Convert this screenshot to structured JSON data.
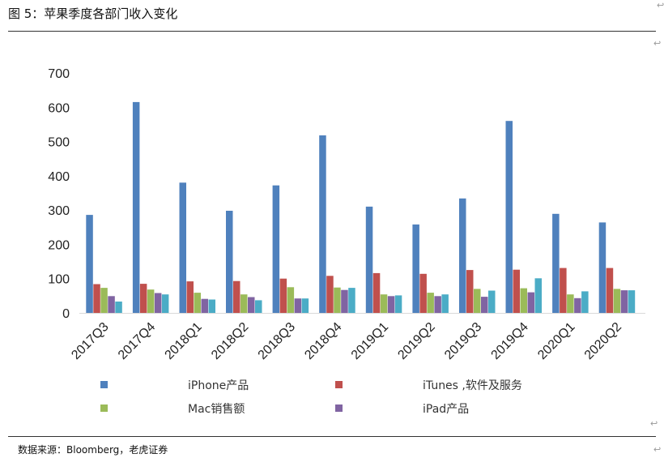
{
  "header": {
    "title": "图 5：苹果季度各部门收入变化"
  },
  "footer": {
    "source": "数据来源：Bloomberg，老虎证券"
  },
  "chart_data": {
    "type": "bar",
    "title": "",
    "xlabel": "",
    "ylabel": "",
    "ylim": [
      0,
      700
    ],
    "yticks": [
      0,
      100,
      200,
      300,
      400,
      500,
      600,
      700
    ],
    "grid": false,
    "legend_position": "bottom",
    "categories": [
      "2017Q3",
      "2017Q4",
      "2018Q1",
      "2018Q2",
      "2018Q3",
      "2018Q4",
      "2019Q1",
      "2019Q2",
      "2019Q3",
      "2019Q4",
      "2020Q1",
      "2020Q2"
    ],
    "series": [
      {
        "name": "iPhone产品",
        "color": "#4F81BD",
        "values": [
          286,
          615,
          380,
          298,
          372,
          518,
          310,
          258,
          334,
          560,
          289,
          264
        ]
      },
      {
        "name": "iTunes ,软件及服务",
        "color": "#C0504D",
        "values": [
          84,
          85,
          92,
          93,
          100,
          108,
          116,
          114,
          125,
          126,
          131,
          131
        ]
      },
      {
        "name": "Mac销售额",
        "color": "#9BBB59",
        "values": [
          73,
          68,
          59,
          54,
          75,
          74,
          54,
          59,
          70,
          72,
          54,
          70
        ]
      },
      {
        "name": "iPad产品",
        "color": "#8064A2",
        "values": [
          49,
          58,
          41,
          46,
          42,
          67,
          49,
          49,
          47,
          60,
          43,
          66
        ]
      },
      {
        "name": "",
        "color": "#4BACC6",
        "values": [
          33,
          54,
          39,
          37,
          42,
          73,
          51,
          54,
          65,
          101,
          63,
          66
        ]
      }
    ]
  }
}
